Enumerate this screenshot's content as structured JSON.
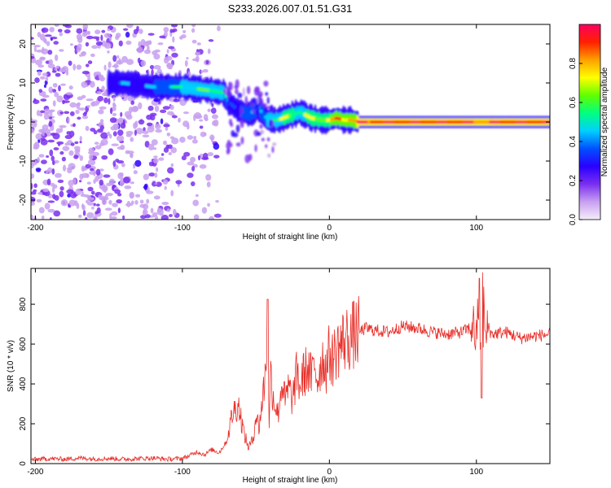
{
  "title": "S233.2026.007.01.51.G31",
  "chart_data": [
    {
      "type": "heatmap",
      "xlabel": "Height of straight line (km)",
      "ylabel": "Frequency (Hz)",
      "xlim": [
        -203,
        150
      ],
      "ylim": [
        -25,
        25
      ],
      "x_ticks": [
        -200,
        -100,
        0,
        100
      ],
      "x_tick_labels": [
        "-200",
        "-100",
        "0",
        "100"
      ],
      "y_ticks": [
        -20,
        -10,
        0,
        10,
        20
      ],
      "y_tick_labels": [
        "-20",
        "-10",
        "0",
        "10",
        "20"
      ],
      "ridge": {
        "x": [
          -150,
          -140,
          -130,
          -120,
          -110,
          -100,
          -90,
          -80,
          -72,
          -68,
          -62,
          -55,
          -48,
          -42,
          -35,
          -28,
          -20,
          -12,
          -5,
          0,
          5,
          10,
          15,
          20,
          50,
          90,
          100,
          150
        ],
        "frequency_hz": [
          10,
          10,
          9.5,
          9,
          9,
          9,
          8.5,
          8,
          7.5,
          5,
          3,
          2,
          3.5,
          0.5,
          0.5,
          1.5,
          2.5,
          1,
          0.5,
          0.5,
          1,
          0.5,
          0.5,
          0,
          0,
          0,
          0,
          0
        ],
        "amplitude": [
          0.25,
          0.3,
          0.3,
          0.3,
          0.4,
          0.45,
          0.5,
          0.55,
          0.5,
          0.25,
          0.3,
          0.35,
          0.3,
          0.45,
          0.55,
          0.6,
          0.55,
          0.6,
          0.65,
          0.7,
          0.75,
          0.75,
          0.8,
          0.85,
          0.9,
          0.9,
          0.85,
          0.9
        ]
      }
    },
    {
      "type": "colorbar",
      "label": "Normalized spectral amplitude",
      "range": [
        0,
        1
      ],
      "ticks": [
        0.0,
        0.2,
        0.4,
        0.6,
        0.8
      ],
      "tick_labels": [
        "0.0",
        "0.2",
        "0.4",
        "0.6",
        "0.8"
      ],
      "colormap": [
        "#f5eefa",
        "#c8a0f0",
        "#7a2ff0",
        "#2a00ff",
        "#0050ff",
        "#00d0ff",
        "#00ff80",
        "#60ff00",
        "#ffff00",
        "#ffa000",
        "#ff2000",
        "#ff0060"
      ]
    },
    {
      "type": "line",
      "xlabel": "Height of straight line (km)",
      "ylabel": "SNR (10 * v/v)",
      "xlim": [
        -203,
        150
      ],
      "ylim": [
        0,
        980
      ],
      "x_ticks": [
        -200,
        -100,
        0,
        100
      ],
      "x_tick_labels": [
        "-200",
        "-100",
        "0",
        "100"
      ],
      "y_ticks": [
        0,
        200,
        400,
        600,
        800
      ],
      "y_tick_labels": [
        "0",
        "200",
        "400",
        "600",
        "800"
      ],
      "series": [
        {
          "name": "SNR",
          "color": "#e8302a",
          "x": [
            -203,
            -190,
            -180,
            -170,
            -160,
            -150,
            -140,
            -130,
            -120,
            -110,
            -100,
            -95,
            -90,
            -85,
            -80,
            -75,
            -70,
            -66,
            -62,
            -58,
            -55,
            -52,
            -50,
            -48,
            -45,
            -43,
            -42,
            -41,
            -40,
            -38,
            -35,
            -32,
            -30,
            -28,
            -25,
            -22,
            -20,
            -18,
            -15,
            -12,
            -10,
            -8,
            -5,
            -2,
            0,
            2,
            5,
            8,
            10,
            15,
            20,
            25,
            30,
            40,
            50,
            60,
            70,
            80,
            90,
            95,
            98,
            100,
            101,
            102,
            103,
            104,
            105,
            106,
            108,
            110,
            120,
            130,
            140,
            150
          ],
          "y": [
            20,
            25,
            22,
            28,
            24,
            26,
            22,
            25,
            28,
            22,
            26,
            40,
            60,
            45,
            70,
            55,
            110,
            250,
            300,
            150,
            80,
            120,
            250,
            180,
            350,
            500,
            820,
            200,
            450,
            330,
            250,
            420,
            300,
            380,
            320,
            460,
            380,
            440,
            480,
            430,
            500,
            420,
            530,
            480,
            560,
            520,
            580,
            600,
            620,
            640,
            660,
            680,
            670,
            660,
            690,
            680,
            660,
            650,
            660,
            680,
            700,
            600,
            800,
            500,
            700,
            330,
            850,
            600,
            700,
            650,
            660,
            630,
            640,
            650
          ]
        }
      ]
    }
  ]
}
